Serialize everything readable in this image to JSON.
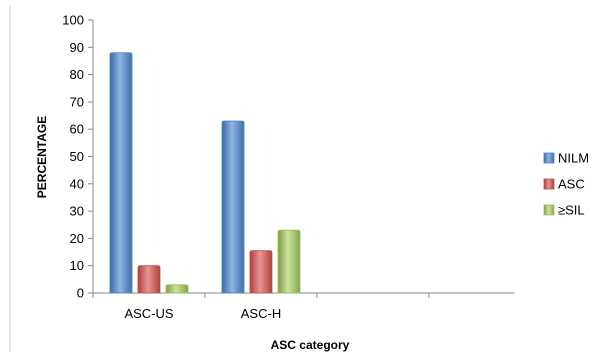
{
  "chart_data": {
    "type": "bar",
    "xlabel": "ASC category",
    "ylabel": "PERCENTAGE",
    "ylim": [
      0,
      100
    ],
    "yticks": [
      0,
      10,
      20,
      30,
      40,
      50,
      60,
      70,
      80,
      90,
      100
    ],
    "categories": [
      "ASC-US",
      "ASC-H"
    ],
    "series": [
      {
        "name": "NILM",
        "values": [
          88,
          63
        ]
      },
      {
        "name": "ASC",
        "values": [
          10,
          15.5
        ]
      },
      {
        "name": "≥SIL",
        "values": [
          3,
          23
        ]
      }
    ],
    "legend_position": "right",
    "grid": false
  },
  "colors": {
    "NILM": "#4f81bd",
    "ASC": "#c0504d",
    "≥SIL": "#9bbb59"
  }
}
